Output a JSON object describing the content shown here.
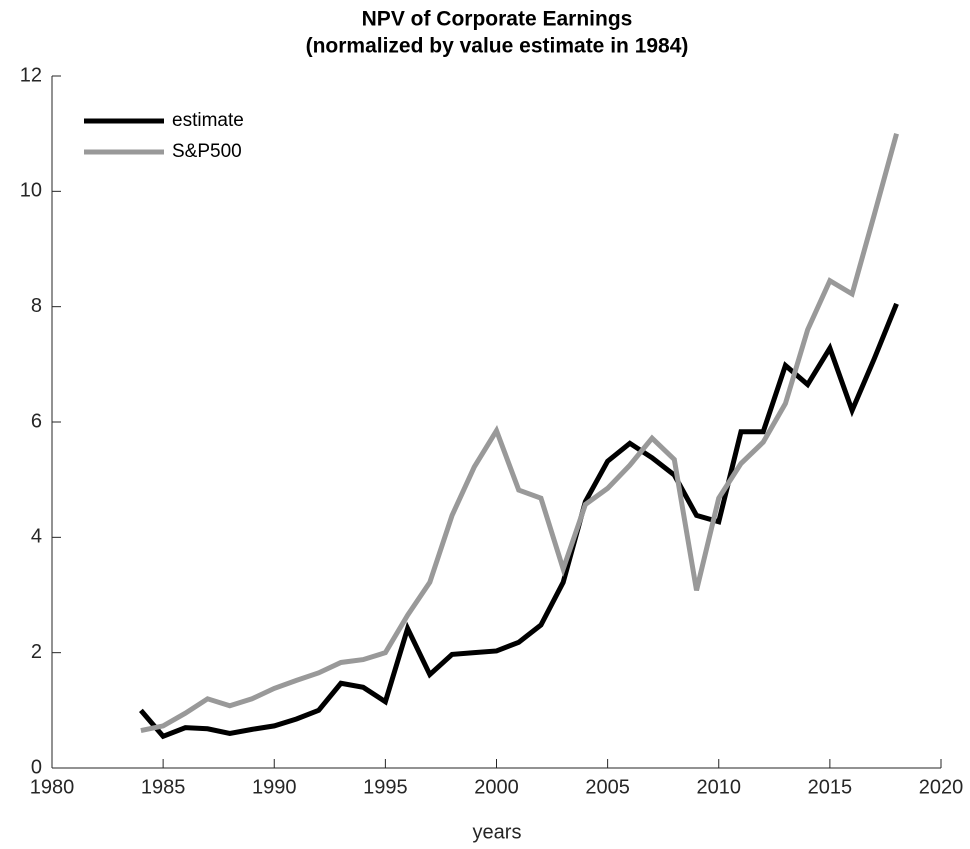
{
  "chart_data": {
    "type": "line",
    "title": "NPV of Corporate Earnings",
    "subtitle": "(normalized by value estimate in 1984)",
    "x_label": "years",
    "x": [
      1984,
      1985,
      1986,
      1987,
      1988,
      1989,
      1990,
      1991,
      1992,
      1993,
      1994,
      1995,
      1996,
      1997,
      1998,
      1999,
      2000,
      2001,
      2002,
      2003,
      2004,
      2005,
      2006,
      2007,
      2008,
      2009,
      2010,
      2011,
      2012,
      2013,
      2014,
      2015,
      2016,
      2017,
      2018
    ],
    "series": [
      {
        "name": "estimate",
        "color": "#000000",
        "values": [
          1.0,
          0.55,
          0.7,
          0.68,
          0.6,
          0.67,
          0.73,
          0.85,
          1.0,
          1.47,
          1.4,
          1.15,
          2.42,
          1.62,
          1.97,
          2.0,
          2.03,
          2.18,
          2.48,
          3.22,
          4.62,
          5.32,
          5.63,
          5.38,
          5.08,
          4.38,
          4.27,
          5.83,
          5.83,
          6.98,
          6.65,
          7.28,
          6.2,
          7.1,
          8.05
        ]
      },
      {
        "name": "S&P500",
        "color": "#999999",
        "values": [
          0.65,
          0.73,
          0.95,
          1.2,
          1.08,
          1.2,
          1.38,
          1.52,
          1.65,
          1.83,
          1.88,
          2.0,
          2.65,
          3.22,
          4.38,
          5.22,
          5.85,
          4.82,
          4.68,
          3.45,
          4.57,
          4.85,
          5.25,
          5.72,
          5.35,
          3.08,
          4.68,
          5.28,
          5.65,
          6.32,
          7.6,
          8.45,
          8.22,
          9.6,
          11.0
        ]
      }
    ],
    "xlim": [
      1980,
      2020
    ],
    "xticks": [
      1980,
      1985,
      1990,
      1995,
      2000,
      2005,
      2010,
      2015,
      2020
    ],
    "ylim": [
      0,
      12
    ],
    "yticks": [
      0,
      2,
      4,
      6,
      8,
      10,
      12
    ],
    "legend": "upper left",
    "grid": false
  }
}
